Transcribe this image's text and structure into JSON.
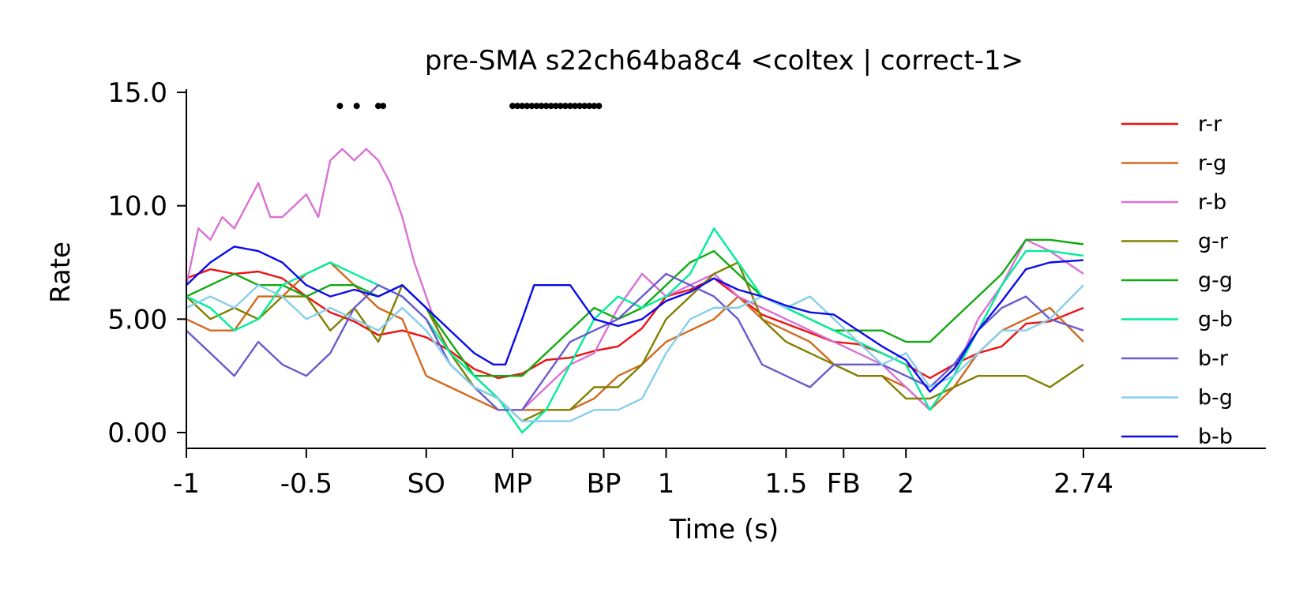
{
  "chart_data": {
    "type": "line",
    "title": "pre-SMA s22ch64ba8c4 <coltex | correct-1>",
    "xlabel": "Time (s)",
    "ylabel": "Rate",
    "xlim": [
      -1,
      3.74
    ],
    "ylim": [
      0,
      15
    ],
    "x_ticks": [
      {
        "x": -1,
        "label": "-1"
      },
      {
        "x": -0.5,
        "label": "-0.5"
      },
      {
        "x": 0,
        "label": "SO"
      },
      {
        "x": 0.36,
        "label": "MP"
      },
      {
        "x": 0.74,
        "label": "BP"
      },
      {
        "x": 1,
        "label": "1"
      },
      {
        "x": 1.5,
        "label": "1.5"
      },
      {
        "x": 1.74,
        "label": "FB"
      },
      {
        "x": 2,
        "label": "2"
      },
      {
        "x": 2.74,
        "label": "2.74"
      }
    ],
    "y_ticks": [
      {
        "y": 0,
        "label": "0.00"
      },
      {
        "y": 5,
        "label": "5.00"
      },
      {
        "y": 10,
        "label": "10.0"
      },
      {
        "y": 15,
        "label": "15.0"
      }
    ],
    "significance_markers": {
      "y": 14.4,
      "x": [
        -0.36,
        -0.29,
        -0.2,
        -0.18,
        0.36,
        0.38,
        0.4,
        0.42,
        0.44,
        0.46,
        0.48,
        0.5,
        0.52,
        0.54,
        0.56,
        0.58,
        0.6,
        0.62,
        0.64,
        0.66,
        0.68,
        0.7,
        0.72
      ]
    },
    "legend_position": "right",
    "series": [
      {
        "name": "r-r",
        "color": "#ee1111",
        "x": [
          -1,
          -0.9,
          -0.8,
          -0.7,
          -0.6,
          -0.5,
          -0.4,
          -0.3,
          -0.2,
          -0.1,
          0,
          0.1,
          0.2,
          0.3,
          0.4,
          0.5,
          0.6,
          0.7,
          0.8,
          0.9,
          1,
          1.1,
          1.2,
          1.3,
          1.4,
          1.5,
          1.6,
          1.7,
          1.8,
          1.9,
          2,
          2.1,
          2.2,
          2.3,
          2.4,
          2.5,
          2.6,
          2.74
        ],
        "y": [
          6.8,
          7.2,
          7.0,
          7.1,
          6.8,
          6.0,
          5.3,
          4.9,
          4.3,
          4.5,
          4.2,
          3.6,
          2.8,
          2.4,
          2.6,
          3.2,
          3.3,
          3.6,
          3.8,
          4.6,
          6.0,
          6.3,
          6.8,
          6.0,
          5.2,
          4.8,
          4.4,
          4.0,
          3.9,
          3.5,
          3.0,
          2.4,
          3.0,
          3.5,
          3.8,
          4.8,
          4.9,
          5.5
        ]
      },
      {
        "name": "r-g",
        "color": "#d2691e",
        "x": [
          -1,
          -0.9,
          -0.8,
          -0.7,
          -0.6,
          -0.5,
          -0.4,
          -0.3,
          -0.2,
          -0.1,
          0,
          0.1,
          0.2,
          0.3,
          0.4,
          0.5,
          0.6,
          0.7,
          0.8,
          0.9,
          1,
          1.1,
          1.2,
          1.3,
          1.4,
          1.5,
          1.6,
          1.7,
          1.8,
          1.9,
          2,
          2.1,
          2.2,
          2.3,
          2.4,
          2.5,
          2.6,
          2.74
        ],
        "y": [
          5.0,
          4.5,
          4.5,
          6.0,
          6.0,
          7.0,
          7.5,
          6.5,
          5.5,
          5.0,
          2.5,
          2.0,
          1.5,
          1.0,
          1.0,
          1.0,
          1.0,
          1.5,
          2.5,
          3.0,
          4.0,
          4.5,
          5.0,
          6.0,
          5.0,
          4.5,
          4.0,
          3.0,
          2.5,
          2.5,
          2.0,
          1.0,
          2.0,
          3.5,
          4.5,
          5.0,
          5.5,
          4.0
        ]
      },
      {
        "name": "r-b",
        "color": "#da70d6",
        "x": [
          -1,
          -0.95,
          -0.9,
          -0.85,
          -0.8,
          -0.75,
          -0.7,
          -0.65,
          -0.6,
          -0.55,
          -0.5,
          -0.45,
          -0.4,
          -0.35,
          -0.3,
          -0.25,
          -0.2,
          -0.15,
          -0.1,
          -0.05,
          0,
          0.05,
          0.1,
          0.15,
          0.2,
          0.25,
          0.3,
          0.35,
          0.4,
          0.45,
          0.5,
          0.6,
          0.7,
          0.8,
          0.9,
          1,
          1.1,
          1.2,
          1.3,
          1.4,
          1.5,
          1.6,
          1.7,
          1.8,
          1.9,
          2,
          2.1,
          2.2,
          2.3,
          2.4,
          2.5,
          2.6,
          2.74
        ],
        "y": [
          6.5,
          9.0,
          8.5,
          9.5,
          9.0,
          10.0,
          11.0,
          9.5,
          9.5,
          10.0,
          10.5,
          9.5,
          12.0,
          12.5,
          12.0,
          12.5,
          12.0,
          11.0,
          9.5,
          7.5,
          6.0,
          4.5,
          3.5,
          3.0,
          2.5,
          2.0,
          1.5,
          1.0,
          1.0,
          1.5,
          2.0,
          3.0,
          3.5,
          5.5,
          7.0,
          6.0,
          6.5,
          7.0,
          6.0,
          5.5,
          5.0,
          4.5,
          4.0,
          3.5,
          3.0,
          2.0,
          1.0,
          2.5,
          5.0,
          6.5,
          8.5,
          8.0,
          7.0
        ]
      },
      {
        "name": "g-r",
        "color": "#808000",
        "x": [
          -1,
          -0.9,
          -0.8,
          -0.7,
          -0.6,
          -0.5,
          -0.4,
          -0.3,
          -0.2,
          -0.1,
          0,
          0.1,
          0.2,
          0.3,
          0.4,
          0.5,
          0.6,
          0.7,
          0.8,
          0.9,
          1,
          1.1,
          1.2,
          1.3,
          1.4,
          1.5,
          1.6,
          1.7,
          1.8,
          1.9,
          2,
          2.1,
          2.2,
          2.3,
          2.4,
          2.5,
          2.6,
          2.74
        ],
        "y": [
          6.0,
          5.0,
          5.5,
          5.0,
          6.0,
          6.0,
          4.5,
          5.5,
          4.0,
          6.5,
          5.5,
          3.5,
          2.0,
          1.5,
          0.5,
          1.0,
          1.0,
          2.0,
          2.0,
          3.0,
          5.0,
          6.0,
          7.0,
          7.5,
          5.0,
          4.0,
          3.5,
          3.0,
          2.5,
          2.5,
          1.5,
          1.5,
          2.0,
          2.5,
          2.5,
          2.5,
          2.0,
          3.0
        ]
      },
      {
        "name": "g-g",
        "color": "#11aa11",
        "x": [
          -1,
          -0.9,
          -0.8,
          -0.7,
          -0.6,
          -0.5,
          -0.4,
          -0.3,
          -0.2,
          -0.1,
          0,
          0.1,
          0.2,
          0.3,
          0.4,
          0.5,
          0.6,
          0.7,
          0.8,
          0.9,
          1,
          1.1,
          1.2,
          1.3,
          1.4,
          1.5,
          1.6,
          1.7,
          1.8,
          1.9,
          2,
          2.1,
          2.2,
          2.3,
          2.4,
          2.5,
          2.6,
          2.74
        ],
        "y": [
          6.0,
          6.5,
          7.0,
          6.5,
          6.5,
          6.0,
          6.5,
          6.5,
          6.0,
          6.5,
          5.5,
          4.0,
          2.5,
          2.5,
          2.5,
          3.5,
          4.5,
          5.5,
          5.0,
          5.5,
          6.5,
          7.5,
          8.0,
          7.0,
          6.0,
          5.5,
          5.0,
          4.5,
          4.5,
          4.5,
          4.0,
          4.0,
          5.0,
          6.0,
          7.0,
          8.5,
          8.5,
          8.3
        ]
      },
      {
        "name": "g-b",
        "color": "#00ee99",
        "x": [
          -1,
          -0.9,
          -0.8,
          -0.7,
          -0.6,
          -0.5,
          -0.4,
          -0.3,
          -0.2,
          -0.1,
          0,
          0.1,
          0.2,
          0.3,
          0.4,
          0.5,
          0.6,
          0.7,
          0.8,
          0.9,
          1,
          1.1,
          1.2,
          1.3,
          1.4,
          1.5,
          1.6,
          1.7,
          1.8,
          1.9,
          2,
          2.1,
          2.2,
          2.3,
          2.4,
          2.5,
          2.6,
          2.74
        ],
        "y": [
          6.0,
          5.5,
          4.5,
          5.0,
          6.5,
          7.0,
          7.5,
          7.0,
          6.5,
          6.0,
          5.0,
          3.5,
          2.5,
          1.5,
          0.0,
          1.0,
          3.0,
          5.0,
          6.0,
          5.5,
          6.0,
          7.0,
          9.0,
          7.5,
          6.0,
          5.5,
          5.0,
          4.5,
          4.0,
          3.5,
          3.0,
          1.0,
          2.5,
          4.5,
          6.5,
          8.0,
          8.0,
          7.8
        ]
      },
      {
        "name": "b-r",
        "color": "#6a5acd",
        "x": [
          -1,
          -0.9,
          -0.8,
          -0.7,
          -0.6,
          -0.5,
          -0.4,
          -0.3,
          -0.2,
          -0.1,
          0,
          0.1,
          0.2,
          0.3,
          0.4,
          0.5,
          0.6,
          0.7,
          0.8,
          0.9,
          1,
          1.1,
          1.2,
          1.3,
          1.4,
          1.5,
          1.6,
          1.7,
          1.8,
          1.9,
          2,
          2.1,
          2.2,
          2.3,
          2.4,
          2.5,
          2.6,
          2.74
        ],
        "y": [
          4.5,
          3.5,
          2.5,
          4.0,
          3.0,
          2.5,
          3.5,
          5.5,
          6.5,
          6.0,
          5.0,
          3.0,
          2.0,
          1.0,
          1.0,
          2.5,
          4.0,
          4.5,
          5.0,
          6.0,
          7.0,
          6.5,
          6.0,
          5.0,
          3.0,
          2.5,
          2.0,
          3.0,
          3.0,
          3.0,
          2.5,
          2.0,
          3.0,
          4.5,
          5.5,
          6.0,
          5.0,
          4.5
        ]
      },
      {
        "name": "b-g",
        "color": "#87ceeb",
        "x": [
          -1,
          -0.9,
          -0.8,
          -0.7,
          -0.6,
          -0.5,
          -0.4,
          -0.3,
          -0.2,
          -0.1,
          0,
          0.1,
          0.2,
          0.3,
          0.4,
          0.5,
          0.6,
          0.7,
          0.8,
          0.9,
          1,
          1.1,
          1.2,
          1.3,
          1.4,
          1.5,
          1.6,
          1.7,
          1.8,
          1.9,
          2,
          2.1,
          2.2,
          2.3,
          2.4,
          2.5,
          2.6,
          2.74
        ],
        "y": [
          5.5,
          6.0,
          5.5,
          6.5,
          6.0,
          5.0,
          5.5,
          5.0,
          4.5,
          5.5,
          4.5,
          3.0,
          2.0,
          1.5,
          0.5,
          0.5,
          0.5,
          1.0,
          1.0,
          1.5,
          3.5,
          5.0,
          5.5,
          5.5,
          6.0,
          5.5,
          6.0,
          5.0,
          4.0,
          3.0,
          3.5,
          2.0,
          2.5,
          3.5,
          4.5,
          4.5,
          5.0,
          6.5
        ]
      },
      {
        "name": "b-b",
        "color": "#0a0aee",
        "x": [
          -1,
          -0.9,
          -0.8,
          -0.7,
          -0.6,
          -0.5,
          -0.4,
          -0.3,
          -0.2,
          -0.1,
          0,
          0.1,
          0.2,
          0.28,
          0.33,
          0.4,
          0.45,
          0.5,
          0.6,
          0.7,
          0.8,
          0.9,
          1,
          1.1,
          1.2,
          1.3,
          1.4,
          1.5,
          1.6,
          1.7,
          1.8,
          1.9,
          2,
          2.1,
          2.2,
          2.3,
          2.4,
          2.5,
          2.6,
          2.74
        ],
        "y": [
          6.5,
          7.5,
          8.2,
          8.0,
          7.5,
          6.5,
          6.0,
          6.3,
          6.0,
          6.5,
          5.5,
          4.5,
          3.5,
          3.0,
          3.0,
          5.0,
          6.5,
          6.5,
          6.5,
          5.0,
          4.7,
          5.0,
          5.8,
          6.2,
          6.8,
          6.3,
          6.0,
          5.6,
          5.3,
          5.2,
          4.5,
          3.8,
          3.2,
          1.8,
          2.8,
          4.5,
          5.8,
          7.2,
          7.5,
          7.6
        ]
      }
    ]
  }
}
